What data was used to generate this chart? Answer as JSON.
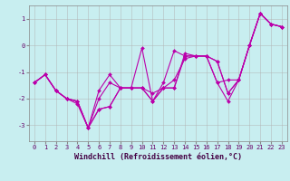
{
  "xlabel": "Windchill (Refroidissement éolien,°C)",
  "background_color": "#c8eef0",
  "grid_color": "#b0b0b0",
  "line_color": "#bb00aa",
  "x": [
    0,
    1,
    2,
    3,
    4,
    5,
    6,
    7,
    8,
    9,
    10,
    11,
    12,
    13,
    14,
    15,
    16,
    17,
    18,
    19,
    20,
    21,
    22,
    23
  ],
  "series": [
    [
      -1.4,
      -1.1,
      -1.7,
      -2.0,
      -2.1,
      -3.1,
      -1.7,
      -1.1,
      -1.6,
      -1.6,
      -1.6,
      -1.8,
      -1.6,
      -1.3,
      -0.5,
      -0.4,
      -0.4,
      -1.4,
      -1.3,
      -1.3,
      0.0,
      1.2,
      0.8,
      0.7
    ],
    [
      -1.4,
      -1.1,
      -1.7,
      -2.0,
      -2.1,
      -3.1,
      -2.0,
      -1.4,
      -1.6,
      -1.6,
      -1.6,
      -2.1,
      -1.6,
      -1.6,
      -0.3,
      -0.4,
      -0.4,
      -0.6,
      -1.8,
      -1.3,
      0.0,
      1.2,
      0.8,
      0.7
    ],
    [
      -1.4,
      -1.1,
      -1.7,
      -2.0,
      -2.1,
      -3.1,
      -2.4,
      -2.3,
      -1.6,
      -1.6,
      -0.1,
      -2.1,
      -1.4,
      -0.2,
      -0.4,
      -0.4,
      -0.4,
      -0.6,
      -1.8,
      -1.3,
      0.0,
      1.2,
      0.8,
      0.7
    ],
    [
      -1.4,
      -1.1,
      -1.7,
      -2.0,
      -2.2,
      -3.1,
      -2.4,
      -2.3,
      -1.6,
      -1.6,
      -1.6,
      -2.1,
      -1.6,
      -1.6,
      -0.4,
      -0.4,
      -0.4,
      -1.4,
      -2.1,
      -1.3,
      0.0,
      1.2,
      0.8,
      0.7
    ]
  ],
  "ylim": [
    -3.6,
    1.5
  ],
  "xlim": [
    -0.5,
    23.5
  ],
  "yticks": [
    -3,
    -2,
    -1,
    0,
    1
  ],
  "xticks": [
    0,
    1,
    2,
    3,
    4,
    5,
    6,
    7,
    8,
    9,
    10,
    11,
    12,
    13,
    14,
    15,
    16,
    17,
    18,
    19,
    20,
    21,
    22,
    23
  ],
  "tick_fontsize": 5.0,
  "label_fontsize": 6.0,
  "markersize": 2.0,
  "linewidth": 0.8
}
